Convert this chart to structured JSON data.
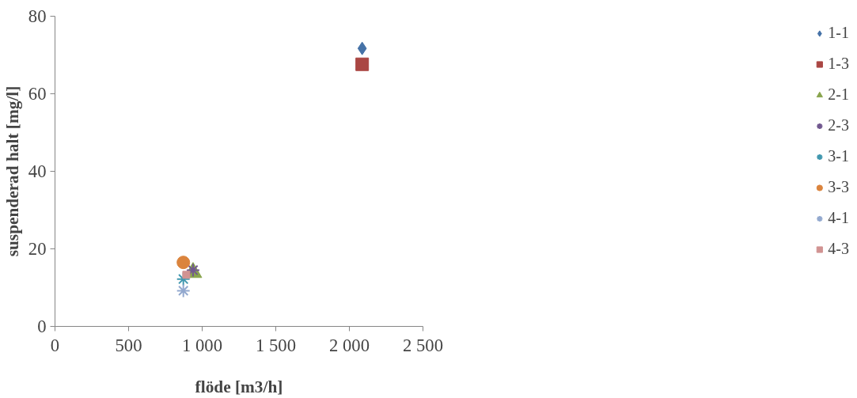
{
  "chart_data": {
    "type": "scatter",
    "xlabel": "flöde [m3/h]",
    "ylabel": "suspenderad halt [mg/l]",
    "xlim": [
      0,
      2500
    ],
    "ylim": [
      0,
      80
    ],
    "xticks": [
      0,
      500,
      {
        "value": 1000,
        "label": "1 000"
      },
      {
        "value": 1500,
        "label": "1 500"
      },
      {
        "value": 2000,
        "label": "2 000"
      },
      {
        "value": 2500,
        "label": "2 500"
      }
    ],
    "yticks": [
      0,
      20,
      40,
      60,
      80
    ],
    "grid": false,
    "legend": "right",
    "series": [
      {
        "name": "1-1",
        "color": "#4572a7",
        "marker": "diamond",
        "x": [
          2087
        ],
        "values": [
          71.7
        ]
      },
      {
        "name": "1-3",
        "color": "#aa4643",
        "marker": "square",
        "x": [
          2087
        ],
        "values": [
          67.6
        ]
      },
      {
        "name": "2-1",
        "color": "#89a54e",
        "marker": "triangle",
        "x": [
          938
        ],
        "values": [
          13.9
        ]
      },
      {
        "name": "2-3",
        "color": "#71588f",
        "marker": "cross",
        "x": [
          938
        ],
        "values": [
          14.5
        ]
      },
      {
        "name": "3-1",
        "color": "#4198af",
        "marker": "cross",
        "x": [
          872
        ],
        "values": [
          12.2
        ]
      },
      {
        "name": "3-3",
        "color": "#db843d",
        "marker": "circle",
        "x": [
          872
        ],
        "values": [
          16.5
        ]
      },
      {
        "name": "4-1",
        "color": "#93a9cf",
        "marker": "cross",
        "x": [
          872
        ],
        "values": [
          9.2
        ]
      },
      {
        "name": "4-3",
        "color": "#d19392",
        "marker": "square",
        "x": [
          892
        ],
        "values": [
          13.3
        ]
      }
    ]
  }
}
